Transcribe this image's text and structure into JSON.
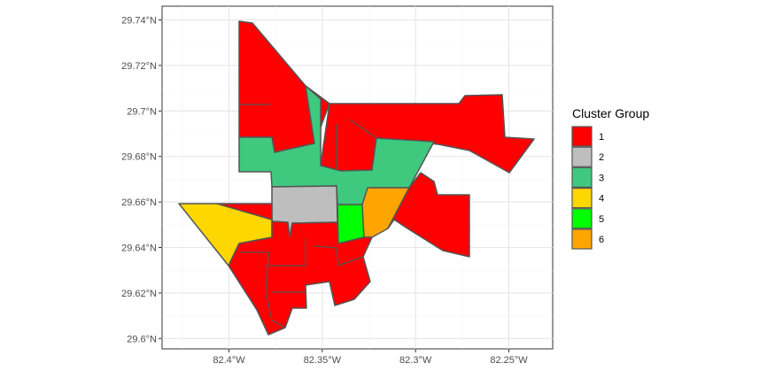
{
  "chart_data": {
    "type": "choropleth-map",
    "x_axis": {
      "ticks": [
        {
          "value": -82.4,
          "label": "82.4°W"
        },
        {
          "value": -82.35,
          "label": "82.35°W"
        },
        {
          "value": -82.3,
          "label": "82.3°W"
        },
        {
          "value": -82.25,
          "label": "82.25°W"
        }
      ]
    },
    "y_axis": {
      "ticks": [
        {
          "value": 29.74,
          "label": "29.74°N"
        },
        {
          "value": 29.72,
          "label": "29.72°N"
        },
        {
          "value": 29.7,
          "label": "29.7°N"
        },
        {
          "value": 29.68,
          "label": "29.68°N"
        },
        {
          "value": 29.66,
          "label": "29.66°N"
        },
        {
          "value": 29.64,
          "label": "29.64°N"
        },
        {
          "value": 29.62,
          "label": "29.62°N"
        },
        {
          "value": 29.6,
          "label": "29.6°N"
        }
      ]
    },
    "grid": true,
    "legend": {
      "title": "Cluster Group",
      "position": "right",
      "entries": [
        {
          "label": "1",
          "color": "#FF0000"
        },
        {
          "label": "2",
          "color": "#BEBEBE"
        },
        {
          "label": "3",
          "color": "#3FC97F"
        },
        {
          "label": "4",
          "color": "#FFD700"
        },
        {
          "label": "5",
          "color": "#00FF00"
        },
        {
          "label": "6",
          "color": "#FFA500"
        }
      ]
    }
  }
}
